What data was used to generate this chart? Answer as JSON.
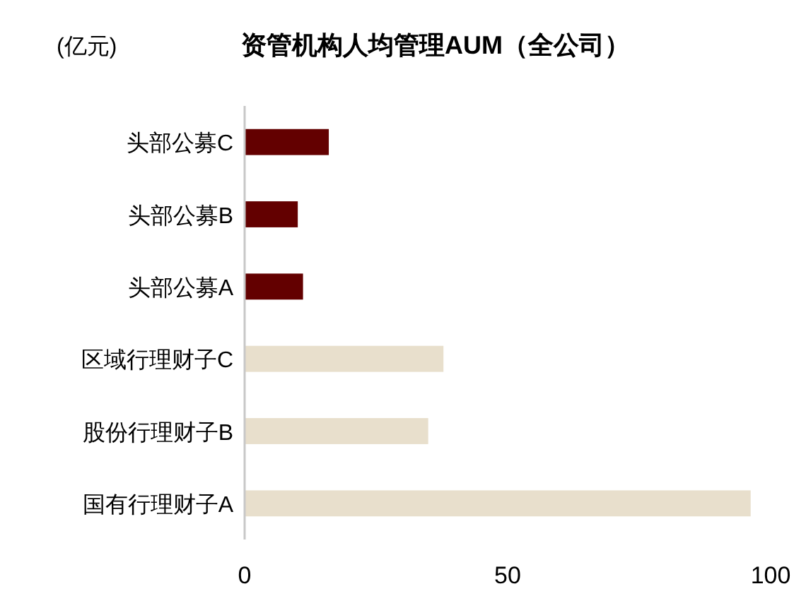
{
  "chart_data": {
    "type": "bar",
    "orientation": "horizontal",
    "title": "资管机构人均管理AUM（全公司）",
    "xlabel": "(亿元)",
    "categories": [
      "头部公募C",
      "头部公募B",
      "头部公募A",
      "区域行理财子C",
      "股份行理财子B",
      "国有行理财子A"
    ],
    "values": [
      16.0,
      10.1,
      11.1,
      37.8,
      34.9,
      96.2
    ],
    "colors": [
      "#630000",
      "#630000",
      "#630000",
      "#e8dfcc",
      "#e8dfcc",
      "#e8dfcc"
    ],
    "xlim": [
      0,
      100
    ],
    "xticks": [
      0,
      50,
      100
    ],
    "grid": false
  }
}
